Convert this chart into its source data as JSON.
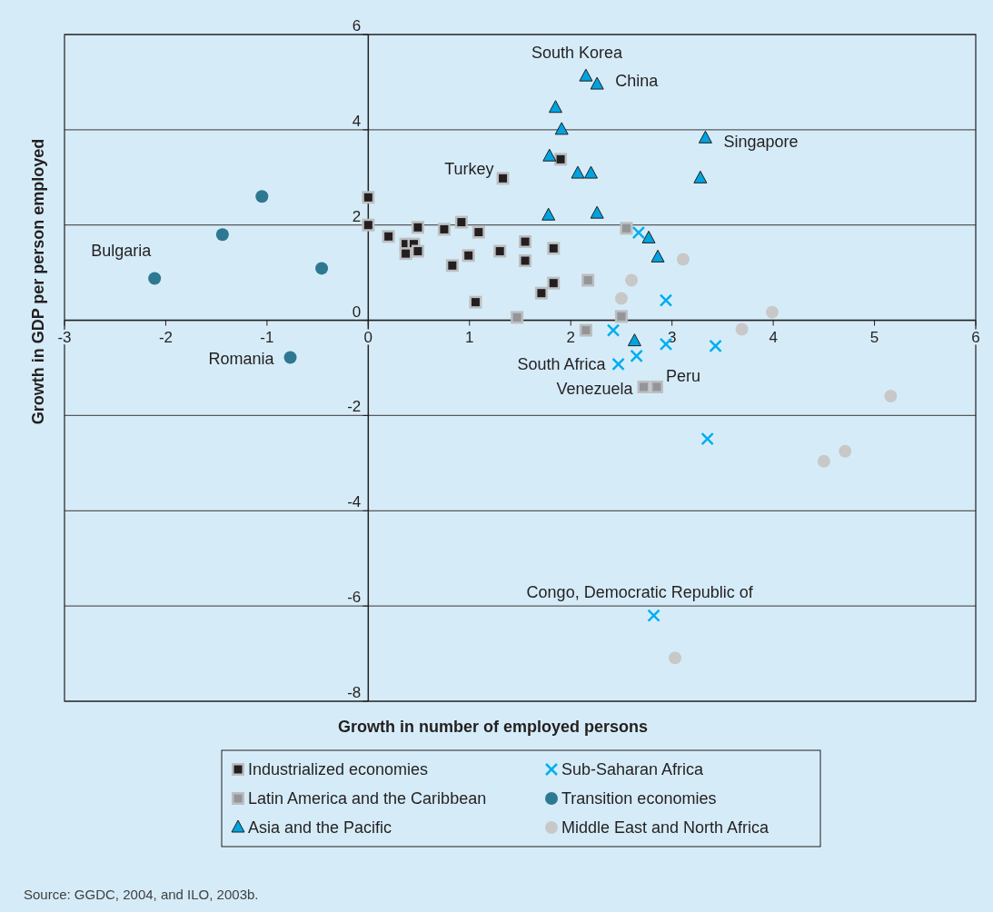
{
  "chart_data": {
    "type": "scatter",
    "xlabel": "Growth in number of employed persons",
    "ylabel": "Growth in GDP per person employed",
    "xlim": [
      -3,
      6
    ],
    "xticks": [
      -3,
      -2,
      -1,
      0,
      1,
      2,
      3,
      4,
      5,
      6
    ],
    "ylim": [
      -8,
      6
    ],
    "yticks": [
      -8,
      -6,
      -4,
      -2,
      0,
      2,
      4,
      6
    ],
    "grid": "y",
    "legend": "bottom",
    "series": [
      {
        "name": "Industrialized economies",
        "color": "#231f20",
        "marker": "square",
        "x": [
          0.0,
          0.0,
          0.2,
          0.37,
          0.45,
          0.37,
          0.49,
          0.49,
          0.75,
          0.92,
          1.09,
          0.83,
          0.99,
          1.06,
          1.3,
          1.33,
          1.55,
          1.55,
          1.83,
          1.83,
          1.71,
          1.9
        ],
        "values": [
          2.58,
          2.0,
          1.76,
          1.6,
          1.6,
          1.4,
          1.45,
          1.95,
          1.91,
          2.06,
          1.85,
          1.15,
          1.36,
          0.38,
          1.45,
          2.98,
          1.65,
          1.25,
          1.51,
          0.78,
          0.57,
          3.38
        ]
      },
      {
        "name": "Latin America and the Caribbean",
        "color": "#939598",
        "marker": "square",
        "x": [
          2.55,
          2.17,
          1.47,
          2.5,
          2.15,
          2.72,
          2.85
        ],
        "values": [
          1.93,
          0.84,
          0.06,
          0.08,
          -0.21,
          -1.4,
          -1.4
        ]
      },
      {
        "name": "Asia and the Pacific",
        "color": "#00a3e0",
        "marker": "triangle",
        "x": [
          2.15,
          2.26,
          1.85,
          1.91,
          1.79,
          2.07,
          2.2,
          3.33,
          3.28,
          1.78,
          2.26,
          2.77,
          2.86,
          2.63
        ],
        "values": [
          5.12,
          4.95,
          4.46,
          4.0,
          3.44,
          3.08,
          3.08,
          3.82,
          2.98,
          2.2,
          2.24,
          1.72,
          1.32,
          -0.44
        ]
      },
      {
        "name": "Sub-Saharan Africa",
        "color": "#00aeef",
        "marker": "cross",
        "x": [
          2.67,
          2.94,
          2.42,
          2.94,
          2.65,
          2.47,
          3.43,
          3.35,
          2.82
        ],
        "values": [
          1.84,
          0.42,
          -0.21,
          -0.5,
          -0.75,
          -0.92,
          -0.54,
          -2.49,
          -6.2
        ]
      },
      {
        "name": "Transition economies",
        "color": "#2e7891",
        "marker": "circle",
        "x": [
          -2.11,
          -1.44,
          -1.05,
          -0.46,
          -0.77
        ],
        "values": [
          0.88,
          1.8,
          2.6,
          1.09,
          -0.78
        ]
      },
      {
        "name": "Middle East and North Africa",
        "color": "#c8c8c8",
        "marker": "circle",
        "x": [
          3.11,
          2.6,
          2.5,
          3.99,
          3.69,
          5.16,
          4.71,
          4.5,
          3.03
        ],
        "values": [
          1.28,
          0.84,
          0.46,
          0.17,
          -0.19,
          -1.59,
          -2.75,
          -2.96,
          -7.09
        ]
      }
    ],
    "annotations": [
      {
        "text": "South Korea",
        "x": 2.15,
        "y": 5.12
      },
      {
        "text": "China",
        "x": 2.26,
        "y": 4.95
      },
      {
        "text": "Singapore",
        "x": 3.33,
        "y": 3.82
      },
      {
        "text": "Turkey",
        "x": 1.33,
        "y": 2.98
      },
      {
        "text": "Bulgaria",
        "x": -2.11,
        "y": 0.88
      },
      {
        "text": "Romania",
        "x": -0.77,
        "y": -0.78
      },
      {
        "text": "South Africa",
        "x": 2.47,
        "y": -0.92
      },
      {
        "text": "Venezuela",
        "x": 2.72,
        "y": -1.4
      },
      {
        "text": "Peru",
        "x": 2.85,
        "y": -1.4
      },
      {
        "text": "Congo, Democratic Republic of",
        "x": 2.82,
        "y": -6.2
      },
      "Source: GGDC, 2004, and ILO, 2003b."
    ]
  }
}
